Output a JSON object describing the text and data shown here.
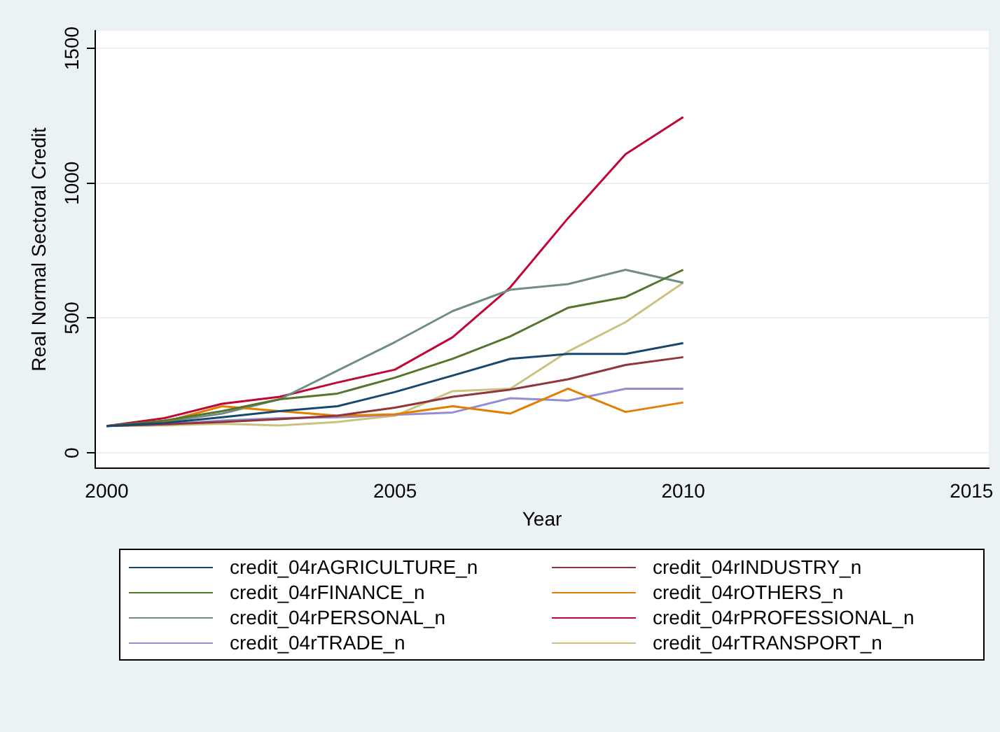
{
  "chart_data": {
    "type": "line",
    "xlabel": "Year",
    "ylabel": "Real Normal Sectoral Credit",
    "x": [
      2000,
      2001,
      2002,
      2003,
      2004,
      2005,
      2006,
      2007,
      2008,
      2009,
      2010
    ],
    "xlim": [
      1999.8,
      2015.3
    ],
    "xticks": [
      2000,
      2005,
      2010,
      2015
    ],
    "ylim": [
      -56,
      1565
    ],
    "yticks": [
      0,
      500,
      1000,
      1500
    ],
    "grid": "y",
    "legend": "bottom",
    "marker": "none",
    "line_style": "solid",
    "series": [
      {
        "name": "credit_04rAGRICULTURE_n",
        "color": "#1a476f",
        "values": [
          100,
          111,
          132,
          155,
          173,
          226,
          287,
          349,
          367,
          367,
          407
        ]
      },
      {
        "name": "credit_04rINDUSTRY_n",
        "color": "#90353b",
        "values": [
          100,
          106,
          115,
          125,
          138,
          168,
          208,
          235,
          273,
          326,
          355
        ]
      },
      {
        "name": "credit_04rFINANCE_n",
        "color": "#55752f",
        "values": [
          100,
          120,
          155,
          199,
          220,
          279,
          349,
          432,
          538,
          578,
          679
        ]
      },
      {
        "name": "credit_04rOTHERS_n",
        "color": "#e37e00",
        "values": [
          100,
          115,
          173,
          155,
          138,
          143,
          173,
          146,
          238,
          152,
          187
        ]
      },
      {
        "name": "credit_04rPERSONAL_n",
        "color": "#6e8e84",
        "values": [
          100,
          115,
          146,
          199,
          305,
          411,
          526,
          605,
          626,
          679,
          631
        ]
      },
      {
        "name": "credit_04rPROFESSIONAL_n",
        "color": "#c10534",
        "values": [
          100,
          129,
          182,
          208,
          261,
          309,
          429,
          614,
          870,
          1108,
          1245
        ]
      },
      {
        "name": "credit_04rTRADE_n",
        "color": "#938dd2",
        "values": [
          100,
          106,
          120,
          129,
          132,
          141,
          150,
          203,
          194,
          238,
          238
        ]
      },
      {
        "name": "credit_04rTRANSPORT_n",
        "color": "#cac27e",
        "values": [
          100,
          102,
          108,
          102,
          115,
          138,
          229,
          238,
          376,
          485,
          631
        ]
      }
    ]
  }
}
